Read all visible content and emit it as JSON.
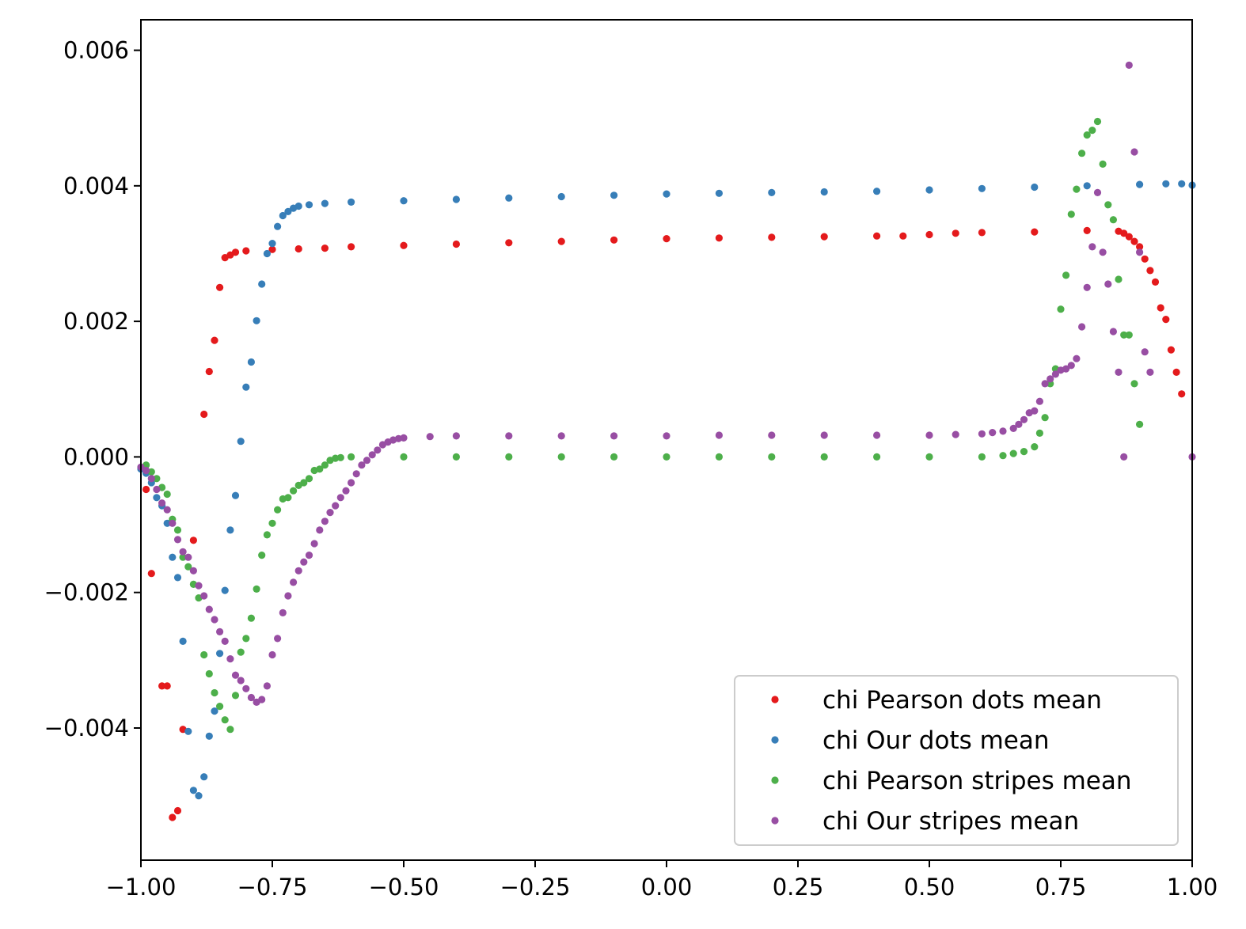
{
  "chart_data": {
    "type": "scatter",
    "title": "",
    "xlabel": "",
    "ylabel": "",
    "xlim": [
      -1.0,
      1.0
    ],
    "ylim": [
      -0.00595,
      0.00645
    ],
    "x_ticks": [
      -1.0,
      -0.75,
      -0.5,
      -0.25,
      0.0,
      0.25,
      0.5,
      0.75,
      1.0
    ],
    "x_tick_labels": [
      "−1.00",
      "−0.75",
      "−0.50",
      "−0.25",
      "0.00",
      "0.25",
      "0.50",
      "0.75",
      "1.00"
    ],
    "y_ticks": [
      -0.004,
      -0.002,
      0.0,
      0.002,
      0.004,
      0.006
    ],
    "y_tick_labels": [
      "−0.004",
      "−0.002",
      "0.000",
      "0.002",
      "0.004",
      "0.006"
    ],
    "grid": false,
    "legend_position": "lower-right",
    "series": [
      {
        "name": "chi Pearson dots mean",
        "color": "#e41a1c",
        "points": [
          [
            -0.99,
            -0.00048
          ],
          [
            -0.98,
            -0.00172
          ],
          [
            -0.96,
            -0.00338
          ],
          [
            -0.95,
            -0.00338
          ],
          [
            -0.94,
            -0.00532
          ],
          [
            -0.93,
            -0.00522
          ],
          [
            -0.92,
            -0.00402
          ],
          [
            -0.9,
            -0.00123
          ],
          [
            -0.88,
            0.00063
          ],
          [
            -0.87,
            0.00126
          ],
          [
            -0.86,
            0.00172
          ],
          [
            -0.85,
            0.0025
          ],
          [
            -0.84,
            0.00294
          ],
          [
            -0.83,
            0.00298
          ],
          [
            -0.82,
            0.00302
          ],
          [
            -0.8,
            0.00304
          ],
          [
            -0.75,
            0.00306
          ],
          [
            -0.7,
            0.00307
          ],
          [
            -0.65,
            0.00308
          ],
          [
            -0.6,
            0.0031
          ],
          [
            -0.5,
            0.00312
          ],
          [
            -0.4,
            0.00314
          ],
          [
            -0.3,
            0.00316
          ],
          [
            -0.2,
            0.00318
          ],
          [
            -0.1,
            0.0032
          ],
          [
            0.0,
            0.00322
          ],
          [
            0.1,
            0.00323
          ],
          [
            0.2,
            0.00324
          ],
          [
            0.3,
            0.00325
          ],
          [
            0.4,
            0.00326
          ],
          [
            0.45,
            0.00326
          ],
          [
            0.5,
            0.00328
          ],
          [
            0.55,
            0.0033
          ],
          [
            0.6,
            0.00331
          ],
          [
            0.7,
            0.00332
          ],
          [
            0.8,
            0.00334
          ],
          [
            0.86,
            0.00333
          ],
          [
            0.87,
            0.0033
          ],
          [
            0.88,
            0.00325
          ],
          [
            0.89,
            0.00318
          ],
          [
            0.9,
            0.0031
          ],
          [
            0.91,
            0.00292
          ],
          [
            0.92,
            0.00275
          ],
          [
            0.93,
            0.00258
          ],
          [
            0.94,
            0.0022
          ],
          [
            0.95,
            0.00203
          ],
          [
            0.96,
            0.00158
          ],
          [
            0.97,
            0.00125
          ],
          [
            0.98,
            0.00093
          ]
        ]
      },
      {
        "name": "chi Our dots mean",
        "color": "#377eb8",
        "points": [
          [
            -1.0,
            -0.00018
          ],
          [
            -0.99,
            -0.00024
          ],
          [
            -0.98,
            -0.00038
          ],
          [
            -0.97,
            -0.0006
          ],
          [
            -0.96,
            -0.00072
          ],
          [
            -0.95,
            -0.00098
          ],
          [
            -0.94,
            -0.00148
          ],
          [
            -0.93,
            -0.00178
          ],
          [
            -0.92,
            -0.00272
          ],
          [
            -0.91,
            -0.00405
          ],
          [
            -0.9,
            -0.00492
          ],
          [
            -0.89,
            -0.005
          ],
          [
            -0.88,
            -0.00472
          ],
          [
            -0.87,
            -0.00412
          ],
          [
            -0.86,
            -0.00375
          ],
          [
            -0.85,
            -0.0029
          ],
          [
            -0.84,
            -0.00197
          ],
          [
            -0.83,
            -0.00108
          ],
          [
            -0.82,
            -0.00057
          ],
          [
            -0.81,
            0.00023
          ],
          [
            -0.8,
            0.00103
          ],
          [
            -0.79,
            0.0014
          ],
          [
            -0.78,
            0.00201
          ],
          [
            -0.77,
            0.00255
          ],
          [
            -0.76,
            0.003
          ],
          [
            -0.75,
            0.00315
          ],
          [
            -0.74,
            0.0034
          ],
          [
            -0.73,
            0.00356
          ],
          [
            -0.72,
            0.00362
          ],
          [
            -0.71,
            0.00367
          ],
          [
            -0.7,
            0.0037
          ],
          [
            -0.68,
            0.00372
          ],
          [
            -0.65,
            0.00374
          ],
          [
            -0.6,
            0.00376
          ],
          [
            -0.5,
            0.00378
          ],
          [
            -0.4,
            0.0038
          ],
          [
            -0.3,
            0.00382
          ],
          [
            -0.2,
            0.00384
          ],
          [
            -0.1,
            0.00386
          ],
          [
            0.0,
            0.00388
          ],
          [
            0.1,
            0.00389
          ],
          [
            0.2,
            0.0039
          ],
          [
            0.3,
            0.00391
          ],
          [
            0.4,
            0.00392
          ],
          [
            0.5,
            0.00394
          ],
          [
            0.6,
            0.00396
          ],
          [
            0.7,
            0.00398
          ],
          [
            0.8,
            0.004
          ],
          [
            0.9,
            0.00402
          ],
          [
            0.95,
            0.00403
          ],
          [
            0.98,
            0.00403
          ],
          [
            1.0,
            0.00401
          ]
        ]
      },
      {
        "name": "chi Pearson stripes mean",
        "color": "#4daf4a",
        "points": [
          [
            -0.99,
            -0.00012
          ],
          [
            -0.98,
            -0.00022
          ],
          [
            -0.97,
            -0.00032
          ],
          [
            -0.96,
            -0.00045
          ],
          [
            -0.95,
            -0.00055
          ],
          [
            -0.94,
            -0.00092
          ],
          [
            -0.93,
            -0.00108
          ],
          [
            -0.92,
            -0.00148
          ],
          [
            -0.91,
            -0.00162
          ],
          [
            -0.9,
            -0.00188
          ],
          [
            -0.89,
            -0.00208
          ],
          [
            -0.88,
            -0.00292
          ],
          [
            -0.87,
            -0.0032
          ],
          [
            -0.86,
            -0.00348
          ],
          [
            -0.85,
            -0.00368
          ],
          [
            -0.84,
            -0.00388
          ],
          [
            -0.83,
            -0.00402
          ],
          [
            -0.82,
            -0.00352
          ],
          [
            -0.81,
            -0.00288
          ],
          [
            -0.8,
            -0.00268
          ],
          [
            -0.79,
            -0.00238
          ],
          [
            -0.78,
            -0.00195
          ],
          [
            -0.77,
            -0.00145
          ],
          [
            -0.76,
            -0.00115
          ],
          [
            -0.75,
            -0.00098
          ],
          [
            -0.74,
            -0.00078
          ],
          [
            -0.73,
            -0.00062
          ],
          [
            -0.72,
            -0.0006
          ],
          [
            -0.71,
            -0.0005
          ],
          [
            -0.7,
            -0.00042
          ],
          [
            -0.69,
            -0.00038
          ],
          [
            -0.68,
            -0.00032
          ],
          [
            -0.67,
            -0.0002
          ],
          [
            -0.66,
            -0.00018
          ],
          [
            -0.65,
            -0.00012
          ],
          [
            -0.64,
            -5e-05
          ],
          [
            -0.63,
            -2e-05
          ],
          [
            -0.62,
            -1e-05
          ],
          [
            -0.6,
            0.0
          ],
          [
            -0.5,
            0.0
          ],
          [
            -0.4,
            0.0
          ],
          [
            -0.3,
            0.0
          ],
          [
            -0.2,
            0.0
          ],
          [
            -0.1,
            0.0
          ],
          [
            0.0,
            0.0
          ],
          [
            0.1,
            0.0
          ],
          [
            0.2,
            0.0
          ],
          [
            0.3,
            0.0
          ],
          [
            0.4,
            0.0
          ],
          [
            0.5,
            0.0
          ],
          [
            0.6,
            0.0
          ],
          [
            0.64,
            2e-05
          ],
          [
            0.66,
            5e-05
          ],
          [
            0.68,
            8e-05
          ],
          [
            0.7,
            0.00015
          ],
          [
            0.71,
            0.00035
          ],
          [
            0.72,
            0.00058
          ],
          [
            0.73,
            0.00108
          ],
          [
            0.74,
            0.0013
          ],
          [
            0.75,
            0.00218
          ],
          [
            0.76,
            0.00268
          ],
          [
            0.77,
            0.00358
          ],
          [
            0.78,
            0.00395
          ],
          [
            0.79,
            0.00448
          ],
          [
            0.8,
            0.00475
          ],
          [
            0.81,
            0.00482
          ],
          [
            0.82,
            0.00495
          ],
          [
            0.83,
            0.00432
          ],
          [
            0.84,
            0.00372
          ],
          [
            0.85,
            0.0035
          ],
          [
            0.86,
            0.00262
          ],
          [
            0.87,
            0.0018
          ],
          [
            0.88,
            0.0018
          ],
          [
            0.89,
            0.00108
          ],
          [
            0.9,
            0.00048
          ]
        ]
      },
      {
        "name": "chi Our stripes mean",
        "color": "#984ea3",
        "points": [
          [
            -1.0,
            -0.00015
          ],
          [
            -0.99,
            -0.0002
          ],
          [
            -0.98,
            -0.00032
          ],
          [
            -0.97,
            -0.00048
          ],
          [
            -0.96,
            -0.00068
          ],
          [
            -0.95,
            -0.00078
          ],
          [
            -0.94,
            -0.00098
          ],
          [
            -0.93,
            -0.00122
          ],
          [
            -0.92,
            -0.0014
          ],
          [
            -0.91,
            -0.00148
          ],
          [
            -0.9,
            -0.00168
          ],
          [
            -0.89,
            -0.0019
          ],
          [
            -0.88,
            -0.00205
          ],
          [
            -0.87,
            -0.00225
          ],
          [
            -0.86,
            -0.0024
          ],
          [
            -0.85,
            -0.00258
          ],
          [
            -0.84,
            -0.00272
          ],
          [
            -0.83,
            -0.00298
          ],
          [
            -0.82,
            -0.00322
          ],
          [
            -0.81,
            -0.0033
          ],
          [
            -0.8,
            -0.00342
          ],
          [
            -0.79,
            -0.00355
          ],
          [
            -0.78,
            -0.00362
          ],
          [
            -0.77,
            -0.00358
          ],
          [
            -0.76,
            -0.00338
          ],
          [
            -0.75,
            -0.00292
          ],
          [
            -0.74,
            -0.00268
          ],
          [
            -0.73,
            -0.0023
          ],
          [
            -0.72,
            -0.00205
          ],
          [
            -0.71,
            -0.00185
          ],
          [
            -0.7,
            -0.00168
          ],
          [
            -0.69,
            -0.00155
          ],
          [
            -0.68,
            -0.00145
          ],
          [
            -0.67,
            -0.00128
          ],
          [
            -0.66,
            -0.00108
          ],
          [
            -0.65,
            -0.00095
          ],
          [
            -0.64,
            -0.00082
          ],
          [
            -0.63,
            -0.00072
          ],
          [
            -0.62,
            -0.0006
          ],
          [
            -0.61,
            -0.0005
          ],
          [
            -0.6,
            -0.00038
          ],
          [
            -0.59,
            -0.00025
          ],
          [
            -0.58,
            -0.00012
          ],
          [
            -0.57,
            -5e-05
          ],
          [
            -0.56,
            3e-05
          ],
          [
            -0.55,
            0.0001
          ],
          [
            -0.54,
            0.00018
          ],
          [
            -0.53,
            0.00022
          ],
          [
            -0.52,
            0.00025
          ],
          [
            -0.51,
            0.00027
          ],
          [
            -0.5,
            0.00028
          ],
          [
            -0.45,
            0.0003
          ],
          [
            -0.4,
            0.00031
          ],
          [
            -0.3,
            0.00031
          ],
          [
            -0.2,
            0.00031
          ],
          [
            -0.1,
            0.00031
          ],
          [
            0.0,
            0.00031
          ],
          [
            0.1,
            0.00032
          ],
          [
            0.2,
            0.00032
          ],
          [
            0.3,
            0.00032
          ],
          [
            0.4,
            0.00032
          ],
          [
            0.5,
            0.00032
          ],
          [
            0.55,
            0.00033
          ],
          [
            0.6,
            0.00034
          ],
          [
            0.62,
            0.00036
          ],
          [
            0.64,
            0.00038
          ],
          [
            0.66,
            0.00042
          ],
          [
            0.67,
            0.00048
          ],
          [
            0.68,
            0.00055
          ],
          [
            0.69,
            0.00065
          ],
          [
            0.7,
            0.00068
          ],
          [
            0.71,
            0.00082
          ],
          [
            0.72,
            0.00108
          ],
          [
            0.73,
            0.00115
          ],
          [
            0.74,
            0.00122
          ],
          [
            0.75,
            0.00128
          ],
          [
            0.76,
            0.0013
          ],
          [
            0.77,
            0.00135
          ],
          [
            0.78,
            0.00145
          ],
          [
            0.79,
            0.00192
          ],
          [
            0.8,
            0.0025
          ],
          [
            0.81,
            0.0031
          ],
          [
            0.82,
            0.0039
          ],
          [
            0.83,
            0.00302
          ],
          [
            0.84,
            0.00255
          ],
          [
            0.85,
            0.00185
          ],
          [
            0.86,
            0.00125
          ],
          [
            0.87,
            0.0
          ],
          [
            0.88,
            0.00578
          ],
          [
            0.89,
            0.0045
          ],
          [
            0.9,
            0.00302
          ],
          [
            0.91,
            0.00155
          ],
          [
            0.92,
            0.00125
          ],
          [
            1.0,
            0.0
          ]
        ]
      }
    ]
  }
}
